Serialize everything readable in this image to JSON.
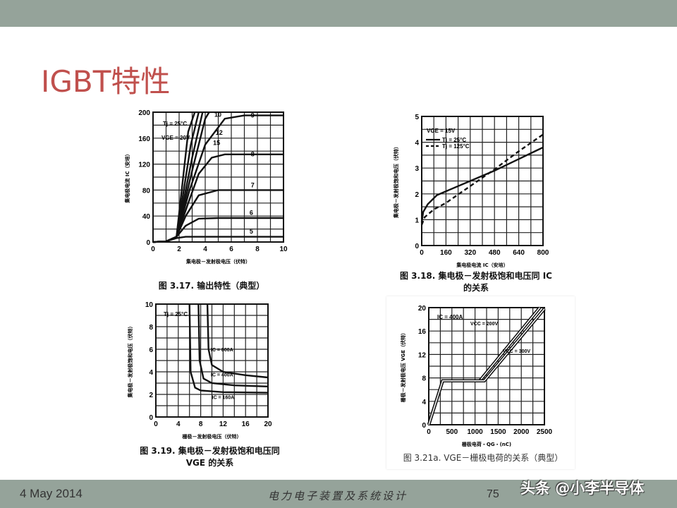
{
  "slide": {
    "title": "IGBT特性",
    "date": "4 May 2014",
    "course": "电力电子装置及系统设计",
    "page": "75",
    "watermark": "头条 @小李半导体"
  },
  "colors": {
    "title": "#c0504d",
    "bar": "#95a39a",
    "curve": "#111111"
  },
  "chart_data": [
    {
      "type": "line",
      "caption": "图 3.17. 输出特性（典型）",
      "xlabel": "集电极－发射极电压（伏特）",
      "ylabel": "集电极电流 IC（安培）",
      "xlim": [
        0,
        10
      ],
      "ylim": [
        0,
        200
      ],
      "xticks": [
        0,
        2,
        4,
        6,
        8,
        10
      ],
      "yticks": [
        0,
        40,
        80,
        120,
        160,
        200
      ],
      "grid": true,
      "annotations": [
        "Tj = 25°C",
        "VGE = 20V"
      ],
      "series": [
        {
          "name": "5",
          "x": [
            0,
            1,
            1.8,
            2.5,
            10
          ],
          "y": [
            0,
            1,
            6,
            8,
            8
          ]
        },
        {
          "name": "6",
          "x": [
            0,
            1,
            1.8,
            2.5,
            3.5,
            5,
            10
          ],
          "y": [
            0,
            1,
            8,
            25,
            36,
            37,
            37
          ]
        },
        {
          "name": "7",
          "x": [
            0,
            1,
            1.8,
            2.5,
            3.5,
            5,
            10
          ],
          "y": [
            0,
            1,
            8,
            40,
            72,
            80,
            80
          ]
        },
        {
          "name": "8",
          "x": [
            0,
            1,
            1.8,
            2.7,
            3.5,
            4.5,
            5.5,
            10
          ],
          "y": [
            0,
            1,
            8,
            60,
            105,
            130,
            135,
            135
          ]
        },
        {
          "name": "9",
          "x": [
            0,
            1,
            1.8,
            2.8,
            4,
            5.5,
            7,
            10
          ],
          "y": [
            0,
            1,
            8,
            80,
            150,
            190,
            195,
            195
          ]
        },
        {
          "name": "10",
          "x": [
            0,
            1,
            1.8,
            3,
            4,
            4.3
          ],
          "y": [
            0,
            1,
            8,
            110,
            190,
            200
          ]
        },
        {
          "name": "12",
          "x": [
            0,
            1,
            1.8,
            3,
            3.8
          ],
          "y": [
            0,
            1,
            8,
            130,
            200
          ]
        },
        {
          "name": "15",
          "x": [
            0,
            1,
            1.8,
            2.9,
            3.5
          ],
          "y": [
            0,
            1,
            8,
            150,
            200
          ]
        },
        {
          "name": "20",
          "x": [
            0,
            1,
            1.8,
            2.7,
            3.2
          ],
          "y": [
            0,
            1,
            8,
            170,
            200
          ]
        }
      ],
      "labels": [
        {
          "text": "9",
          "x": 7.5,
          "y": 192
        },
        {
          "text": "8",
          "x": 7.5,
          "y": 132
        },
        {
          "text": "7",
          "x": 7.5,
          "y": 84
        },
        {
          "text": "6",
          "x": 7.4,
          "y": 42
        },
        {
          "text": "5",
          "x": 7.4,
          "y": 13
        },
        {
          "text": "10",
          "x": 4.7,
          "y": 193
        },
        {
          "text": "12",
          "x": 4.8,
          "y": 162
        },
        {
          "text": "15",
          "x": 4.6,
          "y": 154
        }
      ]
    },
    {
      "type": "line",
      "caption": "图 3.18. 集电极－发射极饱和电压同 IC 的关系",
      "xlabel": "集电极电流 IC（安培）",
      "ylabel": "集电极－发射极饱和电压（伏特）",
      "xlim": [
        0,
        800
      ],
      "ylim": [
        0,
        5
      ],
      "xticks": [
        0,
        160,
        320,
        480,
        640,
        800
      ],
      "yticks": [
        0,
        1,
        2,
        3,
        4,
        5
      ],
      "grid": true,
      "annotations": [
        "VGE = 15V"
      ],
      "series": [
        {
          "name": "Tj = 25°C",
          "dash": false,
          "x": [
            0,
            10,
            40,
            100,
            160,
            320,
            480,
            640,
            800
          ],
          "y": [
            0.9,
            1.3,
            1.6,
            1.95,
            2.1,
            2.5,
            2.9,
            3.35,
            3.8
          ]
        },
        {
          "name": "Tj = 125°C",
          "dash": true,
          "x": [
            0,
            20,
            80,
            160,
            320,
            480,
            640,
            800
          ],
          "y": [
            0.8,
            1.1,
            1.4,
            1.65,
            2.3,
            2.95,
            3.65,
            4.3
          ]
        }
      ],
      "labels": []
    },
    {
      "type": "line",
      "caption": "图 3.19. 集电极－发射极饱和电压同 VGE 的关系",
      "xlabel": "栅极－发射极电压（伏特）",
      "ylabel": "集电极－发射极饱和电压（伏特）",
      "xlim": [
        0,
        20
      ],
      "ylim": [
        0,
        10
      ],
      "xticks": [
        0,
        4,
        8,
        12,
        16,
        20
      ],
      "yticks": [
        0,
        2,
        4,
        6,
        8,
        10
      ],
      "grid": true,
      "annotations": [
        "Tj = 25°C"
      ],
      "series": [
        {
          "name": "IC = 160A",
          "x": [
            6,
            6.2,
            7,
            8,
            12,
            20
          ],
          "y": [
            10,
            4,
            2.6,
            2.35,
            2.2,
            2.15
          ]
        },
        {
          "name": "IC = 400A",
          "x": [
            7.6,
            7.8,
            8.5,
            10,
            14,
            20
          ],
          "y": [
            10,
            5,
            3.4,
            3,
            2.8,
            2.7
          ]
        },
        {
          "name": "IC = 800A",
          "x": [
            9.2,
            9.4,
            10,
            12,
            16,
            20
          ],
          "y": [
            10,
            6,
            4.6,
            4,
            3.7,
            3.5
          ]
        }
      ],
      "labels": [
        {
          "text": "IC = 800A",
          "x": 9.8,
          "y": 5.8
        },
        {
          "text": "IC = 400A",
          "x": 9.8,
          "y": 3.6
        },
        {
          "text": "IC = 160A",
          "x": 10,
          "y": 1.6
        }
      ]
    },
    {
      "type": "line",
      "caption": "图 3.21a. VGE－栅极电荷的关系（典型）",
      "xlabel": "栅极电荷・QG・(nC)",
      "ylabel": "栅极－发射极电压 VGE（伏特）",
      "xlim": [
        0,
        2500
      ],
      "ylim": [
        0,
        20
      ],
      "xticks": [
        0,
        500,
        1000,
        1500,
        2000,
        2500
      ],
      "yticks": [
        0,
        4,
        8,
        12,
        16,
        20
      ],
      "grid": true,
      "annotations": [
        "IC = 400A"
      ],
      "series": [
        {
          "name": "VCC = 200V",
          "x": [
            0,
            300,
            1100,
            2400
          ],
          "y": [
            0,
            7.5,
            7.5,
            20
          ]
        },
        {
          "name": "VCC = 300V",
          "x": [
            0,
            300,
            1200,
            2500
          ],
          "y": [
            0,
            7.5,
            7.5,
            19.8
          ]
        }
      ],
      "labels": [
        {
          "text": "VCC = 200V",
          "x": 900,
          "y": 17
        },
        {
          "text": "VCC = 300V",
          "x": 1600,
          "y": 12.3
        }
      ]
    }
  ]
}
